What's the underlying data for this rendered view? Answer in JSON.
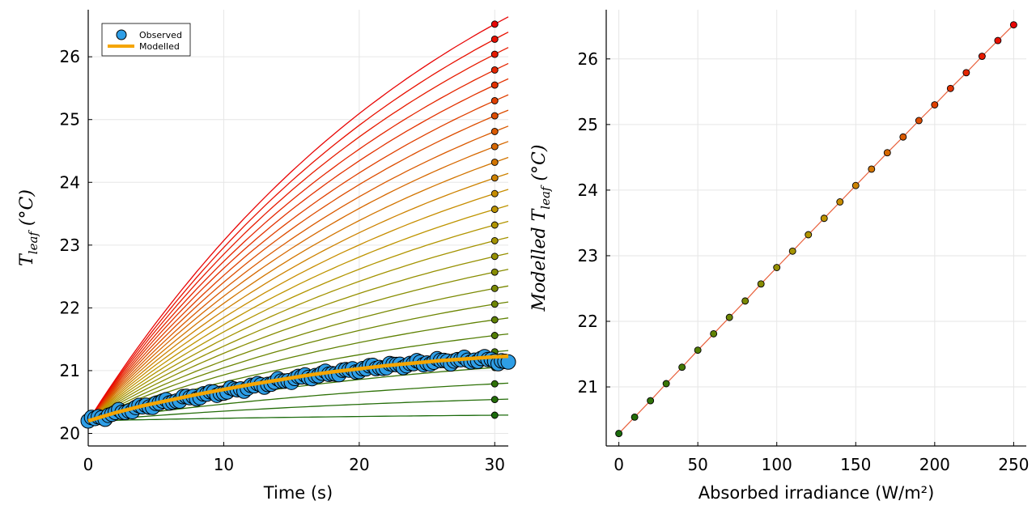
{
  "chart_data": [
    {
      "type": "line",
      "xlabel": "Time (s)",
      "ylabel": {
        "main": "T",
        "sub": "leaf",
        "unit": "(°C)"
      },
      "xlim": [
        0,
        31
      ],
      "ylim": [
        19.8,
        26.75
      ],
      "xticks": [
        0,
        10,
        20,
        30
      ],
      "yticks": [
        20,
        21,
        22,
        23,
        24,
        25,
        26
      ],
      "grid": true,
      "legend": {
        "position": "top-left",
        "entries": [
          "Observed",
          "Modelled"
        ]
      },
      "simulated_series": {
        "start_temperature": 20.2,
        "irradiance": [
          0,
          10,
          20,
          30,
          40,
          50,
          60,
          70,
          80,
          90,
          100,
          110,
          120,
          130,
          140,
          150,
          160,
          170,
          180,
          190,
          200,
          210,
          220,
          230,
          240,
          250
        ],
        "end_temperature_at_30s": [
          20.29,
          20.54,
          20.79,
          21.05,
          21.3,
          21.56,
          21.81,
          22.06,
          22.31,
          22.57,
          22.82,
          23.07,
          23.32,
          23.57,
          23.82,
          24.07,
          24.32,
          24.57,
          24.81,
          25.06,
          25.3,
          25.55,
          25.79,
          26.04,
          26.28,
          26.52
        ],
        "colors": [
          "#1b6b0c",
          "#246d09",
          "#2f7208",
          "#3a7607",
          "#467a06",
          "#537e05",
          "#608204",
          "#6d8603",
          "#7a8903",
          "#888d02",
          "#969001",
          "#a49301",
          "#b29500",
          "#be9400",
          "#c78d00",
          "#cd8200",
          "#d27500",
          "#d66800",
          "#da5a00",
          "#dd4d00",
          "#e04000",
          "#e33200",
          "#e52600",
          "#e71b00",
          "#e81000",
          "#e80505"
        ]
      },
      "observed": {
        "name": "Observed",
        "color": "#2e9ee6",
        "x": [
          0,
          1,
          2,
          3,
          4,
          5,
          6,
          7,
          8,
          9,
          10,
          11,
          12,
          13,
          14,
          15,
          16,
          17,
          18,
          19,
          20,
          21,
          22,
          23,
          24,
          25,
          26,
          27,
          28,
          29,
          30,
          31
        ],
        "y": [
          20.2,
          20.26,
          20.32,
          20.37,
          20.42,
          20.47,
          20.51,
          20.55,
          20.59,
          20.63,
          20.66,
          20.7,
          20.74,
          20.78,
          20.82,
          20.86,
          20.9,
          20.93,
          20.96,
          20.99,
          21.02,
          21.05,
          21.07,
          21.09,
          21.11,
          21.13,
          21.15,
          21.16,
          21.17,
          21.18,
          21.17,
          21.12
        ]
      },
      "modelled": {
        "name": "Modelled",
        "color": "#f5a500",
        "x": [
          0,
          2,
          4,
          6,
          8,
          10,
          12,
          14,
          16,
          18,
          20,
          22,
          24,
          26,
          28,
          30,
          31
        ],
        "y": [
          20.2,
          20.33,
          20.44,
          20.53,
          20.62,
          20.7,
          20.78,
          20.85,
          20.92,
          20.98,
          21.03,
          21.08,
          21.12,
          21.16,
          21.19,
          21.22,
          21.23
        ]
      }
    },
    {
      "type": "scatter",
      "xlabel": "Absorbed irradiance (W/m²)",
      "ylabel": {
        "main": "Modelled T",
        "sub": "leaf",
        "unit": "(°C)"
      },
      "xlim": [
        -8,
        258
      ],
      "ylim": [
        20.1,
        26.75
      ],
      "xticks": [
        0,
        50,
        100,
        150,
        200,
        250
      ],
      "yticks": [
        21,
        22,
        23,
        24,
        25,
        26
      ],
      "grid": true,
      "line_color": "#e8603c",
      "x": [
        0,
        10,
        20,
        30,
        40,
        50,
        60,
        70,
        80,
        90,
        100,
        110,
        120,
        130,
        140,
        150,
        160,
        170,
        180,
        190,
        200,
        210,
        220,
        230,
        240,
        250
      ],
      "y": [
        20.29,
        20.54,
        20.79,
        21.05,
        21.3,
        21.56,
        21.81,
        22.06,
        22.31,
        22.57,
        22.82,
        23.07,
        23.32,
        23.57,
        23.82,
        24.07,
        24.32,
        24.57,
        24.81,
        25.06,
        25.3,
        25.55,
        25.79,
        26.04,
        26.28,
        26.52
      ]
    }
  ]
}
